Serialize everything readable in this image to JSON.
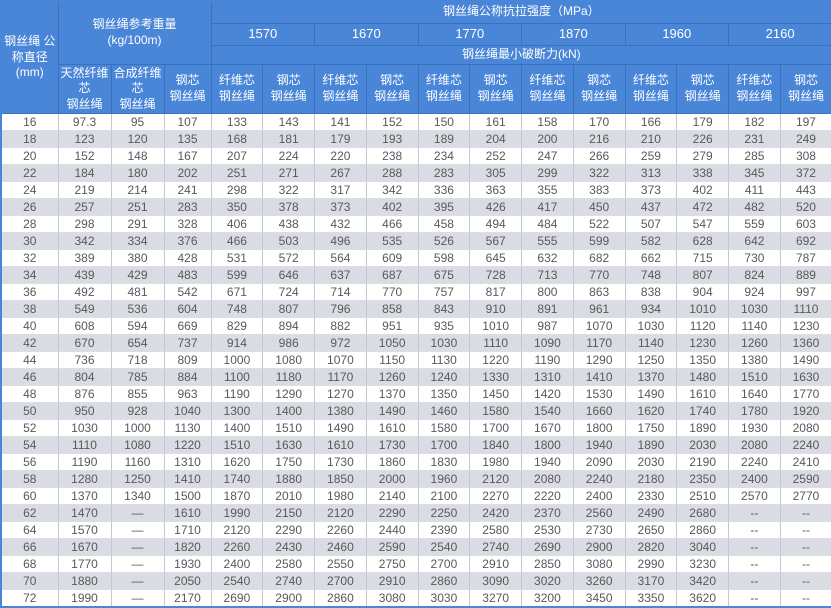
{
  "table": {
    "header": {
      "diameter_label": "钢丝绳 公称直径\n(mm)",
      "weight_title": "钢丝绳参考重量\n(kg/100m)",
      "weight_subs": [
        "天然纤维芯\n钢丝绳",
        "合成纤维芯\n钢丝绳",
        "钢芯\n钢丝绳"
      ],
      "strength_title": "钢丝绳公称抗拉强度（MPa）",
      "strength_grades": [
        "1570",
        "1670",
        "1770",
        "1870",
        "1960",
        "2160"
      ],
      "breaking_title": "钢丝绳最小破断力(kN)",
      "core_subs": [
        "纤维芯\n钢丝绳",
        "钢芯\n钢丝绳"
      ]
    },
    "colors": {
      "header_bg": "#4a86d8",
      "header_border": "#3a70c0",
      "stripe_bg": "#d9dce3",
      "grid_vertical": "#c2c7cf",
      "grid_horizontal": "#dcdee3",
      "text": "#58595b"
    },
    "rows": [
      [
        "16",
        "97.3",
        "95",
        "107",
        "133",
        "143",
        "141",
        "152",
        "150",
        "161",
        "158",
        "170",
        "166",
        "179",
        "182",
        "197"
      ],
      [
        "18",
        "123",
        "120",
        "135",
        "168",
        "181",
        "179",
        "193",
        "189",
        "204",
        "200",
        "216",
        "210",
        "226",
        "231",
        "249"
      ],
      [
        "20",
        "152",
        "148",
        "167",
        "207",
        "224",
        "220",
        "238",
        "234",
        "252",
        "247",
        "266",
        "259",
        "279",
        "285",
        "308"
      ],
      [
        "22",
        "184",
        "180",
        "202",
        "251",
        "271",
        "267",
        "288",
        "283",
        "305",
        "299",
        "322",
        "313",
        "338",
        "345",
        "372"
      ],
      [
        "24",
        "219",
        "214",
        "241",
        "298",
        "322",
        "317",
        "342",
        "336",
        "363",
        "355",
        "383",
        "373",
        "402",
        "411",
        "443"
      ],
      [
        "26",
        "257",
        "251",
        "283",
        "350",
        "378",
        "373",
        "402",
        "395",
        "426",
        "417",
        "450",
        "437",
        "472",
        "482",
        "520"
      ],
      [
        "28",
        "298",
        "291",
        "328",
        "406",
        "438",
        "432",
        "466",
        "458",
        "494",
        "484",
        "522",
        "507",
        "547",
        "559",
        "603"
      ],
      [
        "30",
        "342",
        "334",
        "376",
        "466",
        "503",
        "496",
        "535",
        "526",
        "567",
        "555",
        "599",
        "582",
        "628",
        "642",
        "692"
      ],
      [
        "32",
        "389",
        "380",
        "428",
        "531",
        "572",
        "564",
        "609",
        "598",
        "645",
        "632",
        "682",
        "662",
        "715",
        "730",
        "787"
      ],
      [
        "34",
        "439",
        "429",
        "483",
        "599",
        "646",
        "637",
        "687",
        "675",
        "728",
        "713",
        "770",
        "748",
        "807",
        "824",
        "889"
      ],
      [
        "36",
        "492",
        "481",
        "542",
        "671",
        "724",
        "714",
        "770",
        "757",
        "817",
        "800",
        "863",
        "838",
        "904",
        "924",
        "997"
      ],
      [
        "38",
        "549",
        "536",
        "604",
        "748",
        "807",
        "796",
        "858",
        "843",
        "910",
        "891",
        "961",
        "934",
        "1010",
        "1030",
        "1110"
      ],
      [
        "40",
        "608",
        "594",
        "669",
        "829",
        "894",
        "882",
        "951",
        "935",
        "1010",
        "987",
        "1070",
        "1030",
        "1120",
        "1140",
        "1230"
      ],
      [
        "42",
        "670",
        "654",
        "737",
        "914",
        "986",
        "972",
        "1050",
        "1030",
        "1110",
        "1090",
        "1170",
        "1140",
        "1230",
        "1260",
        "1360"
      ],
      [
        "44",
        "736",
        "718",
        "809",
        "1000",
        "1080",
        "1070",
        "1150",
        "1130",
        "1220",
        "1190",
        "1290",
        "1250",
        "1350",
        "1380",
        "1490"
      ],
      [
        "46",
        "804",
        "785",
        "884",
        "1100",
        "1180",
        "1170",
        "1260",
        "1240",
        "1330",
        "1310",
        "1410",
        "1370",
        "1480",
        "1510",
        "1630"
      ],
      [
        "48",
        "876",
        "855",
        "963",
        "1190",
        "1290",
        "1270",
        "1370",
        "1350",
        "1450",
        "1420",
        "1530",
        "1490",
        "1610",
        "1640",
        "1770"
      ],
      [
        "50",
        "950",
        "928",
        "1040",
        "1300",
        "1400",
        "1380",
        "1490",
        "1460",
        "1580",
        "1540",
        "1660",
        "1620",
        "1740",
        "1780",
        "1920"
      ],
      [
        "52",
        "1030",
        "1000",
        "1130",
        "1400",
        "1510",
        "1490",
        "1610",
        "1580",
        "1700",
        "1670",
        "1800",
        "1750",
        "1890",
        "1930",
        "2080"
      ],
      [
        "54",
        "1110",
        "1080",
        "1220",
        "1510",
        "1630",
        "1610",
        "1730",
        "1700",
        "1840",
        "1800",
        "1940",
        "1890",
        "2030",
        "2080",
        "2240"
      ],
      [
        "56",
        "1190",
        "1160",
        "1310",
        "1620",
        "1750",
        "1730",
        "1860",
        "1830",
        "1980",
        "1940",
        "2090",
        "2030",
        "2190",
        "2240",
        "2410"
      ],
      [
        "58",
        "1280",
        "1250",
        "1410",
        "1740",
        "1880",
        "1850",
        "2000",
        "1960",
        "2120",
        "2080",
        "2240",
        "2180",
        "2350",
        "2400",
        "2590"
      ],
      [
        "60",
        "1370",
        "1340",
        "1500",
        "1870",
        "2010",
        "1980",
        "2140",
        "2100",
        "2270",
        "2220",
        "2400",
        "2330",
        "2510",
        "2570",
        "2770"
      ],
      [
        "62",
        "1470",
        "—",
        "1610",
        "1990",
        "2150",
        "2120",
        "2290",
        "2250",
        "2420",
        "2370",
        "2560",
        "2490",
        "2680",
        "--",
        "--"
      ],
      [
        "64",
        "1570",
        "—",
        "1710",
        "2120",
        "2290",
        "2260",
        "2440",
        "2390",
        "2580",
        "2530",
        "2730",
        "2650",
        "2860",
        "--",
        "--"
      ],
      [
        "66",
        "1670",
        "—",
        "1820",
        "2260",
        "2430",
        "2460",
        "2590",
        "2540",
        "2740",
        "2690",
        "2900",
        "2820",
        "3040",
        "--",
        "--"
      ],
      [
        "68",
        "1770",
        "—",
        "1930",
        "2400",
        "2580",
        "2550",
        "2750",
        "2700",
        "2910",
        "2850",
        "3080",
        "2990",
        "3230",
        "--",
        "--"
      ],
      [
        "70",
        "1880",
        "—",
        "2050",
        "2540",
        "2740",
        "2700",
        "2910",
        "2860",
        "3090",
        "3020",
        "3260",
        "3170",
        "3420",
        "--",
        "--"
      ],
      [
        "72",
        "1990",
        "—",
        "2170",
        "2690",
        "2900",
        "2860",
        "3080",
        "3030",
        "3270",
        "3200",
        "3450",
        "3350",
        "3620",
        "--",
        "--"
      ]
    ]
  }
}
